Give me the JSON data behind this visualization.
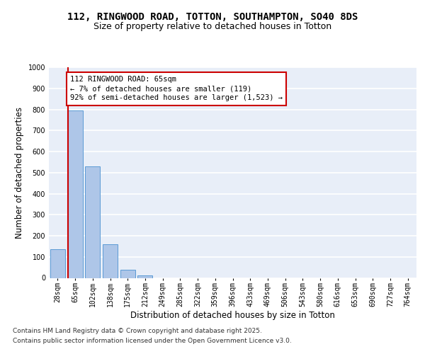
{
  "title_line1": "112, RINGWOOD ROAD, TOTTON, SOUTHAMPTON, SO40 8DS",
  "title_line2": "Size of property relative to detached houses in Totton",
  "xlabel": "Distribution of detached houses by size in Totton",
  "ylabel": "Number of detached properties",
  "categories": [
    "28sqm",
    "65sqm",
    "102sqm",
    "138sqm",
    "175sqm",
    "212sqm",
    "249sqm",
    "285sqm",
    "322sqm",
    "359sqm",
    "396sqm",
    "433sqm",
    "469sqm",
    "506sqm",
    "543sqm",
    "580sqm",
    "616sqm",
    "653sqm",
    "690sqm",
    "727sqm",
    "764sqm"
  ],
  "values": [
    135,
    795,
    530,
    160,
    37,
    13,
    0,
    0,
    0,
    0,
    0,
    0,
    0,
    0,
    0,
    0,
    0,
    0,
    0,
    0,
    0
  ],
  "bar_color": "#aec6e8",
  "bar_edge_color": "#5b9bd5",
  "highlight_bar_index": 1,
  "annotation_text": "112 RINGWOOD ROAD: 65sqm\n← 7% of detached houses are smaller (119)\n92% of semi-detached houses are larger (1,523) →",
  "annotation_box_color": "#ffffff",
  "annotation_border_color": "#cc0000",
  "ylim": [
    0,
    1000
  ],
  "yticks": [
    0,
    100,
    200,
    300,
    400,
    500,
    600,
    700,
    800,
    900,
    1000
  ],
  "vline_color": "#cc0000",
  "background_color": "#e8eef8",
  "grid_color": "#ffffff",
  "footer_line1": "Contains HM Land Registry data © Crown copyright and database right 2025.",
  "footer_line2": "Contains public sector information licensed under the Open Government Licence v3.0.",
  "title_fontsize": 10,
  "subtitle_fontsize": 9,
  "axis_label_fontsize": 8.5,
  "tick_fontsize": 7,
  "annotation_fontsize": 7.5,
  "footer_fontsize": 6.5
}
